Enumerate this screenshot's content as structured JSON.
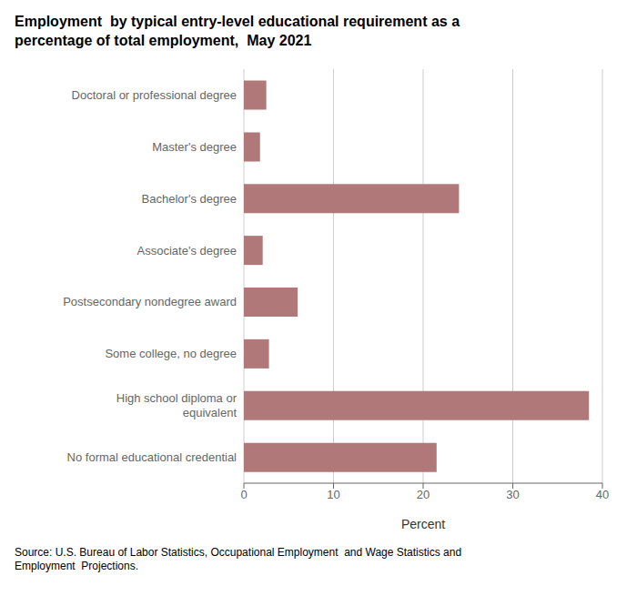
{
  "chart_data": {
    "type": "bar",
    "orientation": "horizontal",
    "title": "Employment  by typical entry-level educational requirement as a\npercentage of total employment,  May 2021",
    "categories": [
      "No formal educational credential",
      "High school diploma or\nequivalent",
      "Some college, no degree",
      "Postsecondary nondegree award",
      "Associate's degree",
      "Bachelor's degree",
      "Master's degree",
      "Doctoral or professional degree"
    ],
    "values": [
      21.5,
      38.5,
      2.8,
      6.0,
      2.1,
      24.0,
      1.8,
      2.5
    ],
    "color": "#b07878",
    "xlim": [
      0,
      40
    ],
    "xticks": [
      0,
      10,
      20,
      30,
      40
    ],
    "xlabel": "Percent",
    "grid": true,
    "annotations": [
      "Source: U.S. Bureau of Labor Statistics, Occupational Employment  and Wage Statistics and\nEmployment  Projections."
    ]
  }
}
